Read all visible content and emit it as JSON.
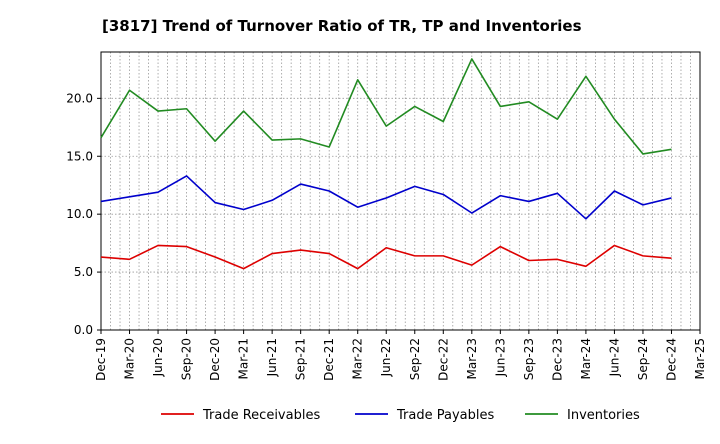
{
  "chart_data": {
    "type": "line",
    "title": "[3817]  Trend of Turnover Ratio of TR, TP and Inventories",
    "xlabel": "",
    "ylabel": "",
    "ylim": [
      0,
      24
    ],
    "yticks": [
      "0.0",
      "5.0",
      "10.0",
      "15.0",
      "20.0"
    ],
    "grid": true,
    "legend_position": "bottom",
    "x": [
      "Dec-19",
      "Jan-20",
      "Feb-20",
      "Mar-20",
      "Apr-20",
      "May-20",
      "Jun-20",
      "Jul-20",
      "Aug-20",
      "Sep-20",
      "Oct-20",
      "Nov-20",
      "Dec-20",
      "Jan-21",
      "Feb-21",
      "Mar-21",
      "Apr-21",
      "May-21",
      "Jun-21",
      "Jul-21",
      "Aug-21",
      "Sep-21",
      "Oct-21",
      "Nov-21",
      "Dec-21",
      "Jan-22",
      "Feb-22",
      "Mar-22",
      "Apr-22",
      "May-22",
      "Jun-22",
      "Jul-22",
      "Aug-22",
      "Sep-22",
      "Oct-22",
      "Nov-22",
      "Dec-22",
      "Jan-23",
      "Feb-23",
      "Mar-23",
      "Apr-23",
      "May-23",
      "Jun-23",
      "Jul-23",
      "Aug-23",
      "Sep-23",
      "Oct-23",
      "Nov-23",
      "Dec-23",
      "Jan-24",
      "Feb-24",
      "Mar-24",
      "Apr-24",
      "May-24",
      "Jun-24",
      "Jul-24",
      "Aug-24",
      "Sep-24",
      "Oct-24",
      "Nov-24",
      "Dec-24",
      "Jan-25",
      "Feb-25",
      "Mar-25"
    ],
    "tick_labels": [
      "Dec-19",
      "Mar-20",
      "Jun-20",
      "Sep-20",
      "Dec-20",
      "Mar-21",
      "Jun-21",
      "Sep-21",
      "Dec-21",
      "Mar-22",
      "Jun-22",
      "Sep-22",
      "Dec-22",
      "Mar-23",
      "Jun-23",
      "Sep-23",
      "Dec-23",
      "Mar-24",
      "Jun-24",
      "Sep-24",
      "Dec-24",
      "Mar-25"
    ],
    "series": [
      {
        "name": "Trade Receivables",
        "color": "#dd0000",
        "points": [
          [
            "Dec-19",
            6.3
          ],
          [
            "Mar-20",
            6.1
          ],
          [
            "Jun-20",
            7.3
          ],
          [
            "Sep-20",
            7.2
          ],
          [
            "Dec-20",
            6.3
          ],
          [
            "Mar-21",
            5.3
          ],
          [
            "Jun-21",
            6.6
          ],
          [
            "Sep-21",
            6.9
          ],
          [
            "Dec-21",
            6.6
          ],
          [
            "Mar-22",
            5.3
          ],
          [
            "Jun-22",
            7.1
          ],
          [
            "Sep-22",
            6.4
          ],
          [
            "Dec-22",
            6.4
          ],
          [
            "Mar-23",
            5.6
          ],
          [
            "Jun-23",
            7.2
          ],
          [
            "Sep-23",
            6.0
          ],
          [
            "Dec-23",
            6.1
          ],
          [
            "Mar-24",
            5.5
          ],
          [
            "Jun-24",
            7.3
          ],
          [
            "Sep-24",
            6.4
          ],
          [
            "Dec-24",
            6.2
          ]
        ]
      },
      {
        "name": "Trade Payables",
        "color": "#0000cc",
        "points": [
          [
            "Dec-19",
            11.1
          ],
          [
            "Mar-20",
            11.5
          ],
          [
            "Jun-20",
            11.9
          ],
          [
            "Sep-20",
            13.3
          ],
          [
            "Dec-20",
            11.0
          ],
          [
            "Mar-21",
            10.4
          ],
          [
            "Jun-21",
            11.2
          ],
          [
            "Sep-21",
            12.6
          ],
          [
            "Dec-21",
            12.0
          ],
          [
            "Mar-22",
            10.6
          ],
          [
            "Jun-22",
            11.4
          ],
          [
            "Sep-22",
            12.4
          ],
          [
            "Dec-22",
            11.7
          ],
          [
            "Mar-23",
            10.1
          ],
          [
            "Jun-23",
            11.6
          ],
          [
            "Sep-23",
            11.1
          ],
          [
            "Dec-23",
            11.8
          ],
          [
            "Mar-24",
            9.6
          ],
          [
            "Jun-24",
            12.0
          ],
          [
            "Sep-24",
            10.8
          ],
          [
            "Dec-24",
            11.4
          ]
        ]
      },
      {
        "name": "Inventories",
        "color": "#228b22",
        "points": [
          [
            "Dec-19",
            16.6
          ],
          [
            "Mar-20",
            20.7
          ],
          [
            "Jun-20",
            18.9
          ],
          [
            "Sep-20",
            19.1
          ],
          [
            "Dec-20",
            16.3
          ],
          [
            "Mar-21",
            18.9
          ],
          [
            "Jun-21",
            16.4
          ],
          [
            "Sep-21",
            16.5
          ],
          [
            "Dec-21",
            15.8
          ],
          [
            "Mar-22",
            21.6
          ],
          [
            "Jun-22",
            17.6
          ],
          [
            "Sep-22",
            19.3
          ],
          [
            "Dec-22",
            18.0
          ],
          [
            "Mar-23",
            23.4
          ],
          [
            "Jun-23",
            19.3
          ],
          [
            "Sep-23",
            19.7
          ],
          [
            "Dec-23",
            18.2
          ],
          [
            "Mar-24",
            21.9
          ],
          [
            "Jun-24",
            18.2
          ],
          [
            "Sep-24",
            15.2
          ],
          [
            "Dec-24",
            15.6
          ]
        ]
      }
    ]
  }
}
